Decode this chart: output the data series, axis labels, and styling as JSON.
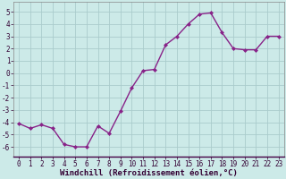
{
  "x": [
    0,
    1,
    2,
    3,
    4,
    5,
    6,
    7,
    8,
    9,
    10,
    11,
    12,
    13,
    14,
    15,
    16,
    17,
    18,
    19,
    20,
    21,
    22,
    23
  ],
  "y": [
    -4.1,
    -4.5,
    -4.2,
    -4.5,
    -5.8,
    -6.0,
    -6.0,
    -4.3,
    -4.9,
    -3.1,
    -1.2,
    0.2,
    0.3,
    2.3,
    3.0,
    4.0,
    4.8,
    4.9,
    3.3,
    2.0,
    1.9,
    1.9,
    3.0,
    3.0
  ],
  "line_color": "#882288",
  "marker": "D",
  "marker_size": 2,
  "bg_color": "#cceae8",
  "grid_color": "#aacccc",
  "xlabel": "Windchill (Refroidissement éolien,°C)",
  "ylabel": "",
  "ylim": [
    -6.8,
    5.8
  ],
  "xlim": [
    -0.5,
    23.5
  ],
  "yticks": [
    -6,
    -5,
    -4,
    -3,
    -2,
    -1,
    0,
    1,
    2,
    3,
    4,
    5
  ],
  "xticks": [
    0,
    1,
    2,
    3,
    4,
    5,
    6,
    7,
    8,
    9,
    10,
    11,
    12,
    13,
    14,
    15,
    16,
    17,
    18,
    19,
    20,
    21,
    22,
    23
  ],
  "tick_label_size": 5.5,
  "xlabel_size": 6.5,
  "line_width": 1.0
}
